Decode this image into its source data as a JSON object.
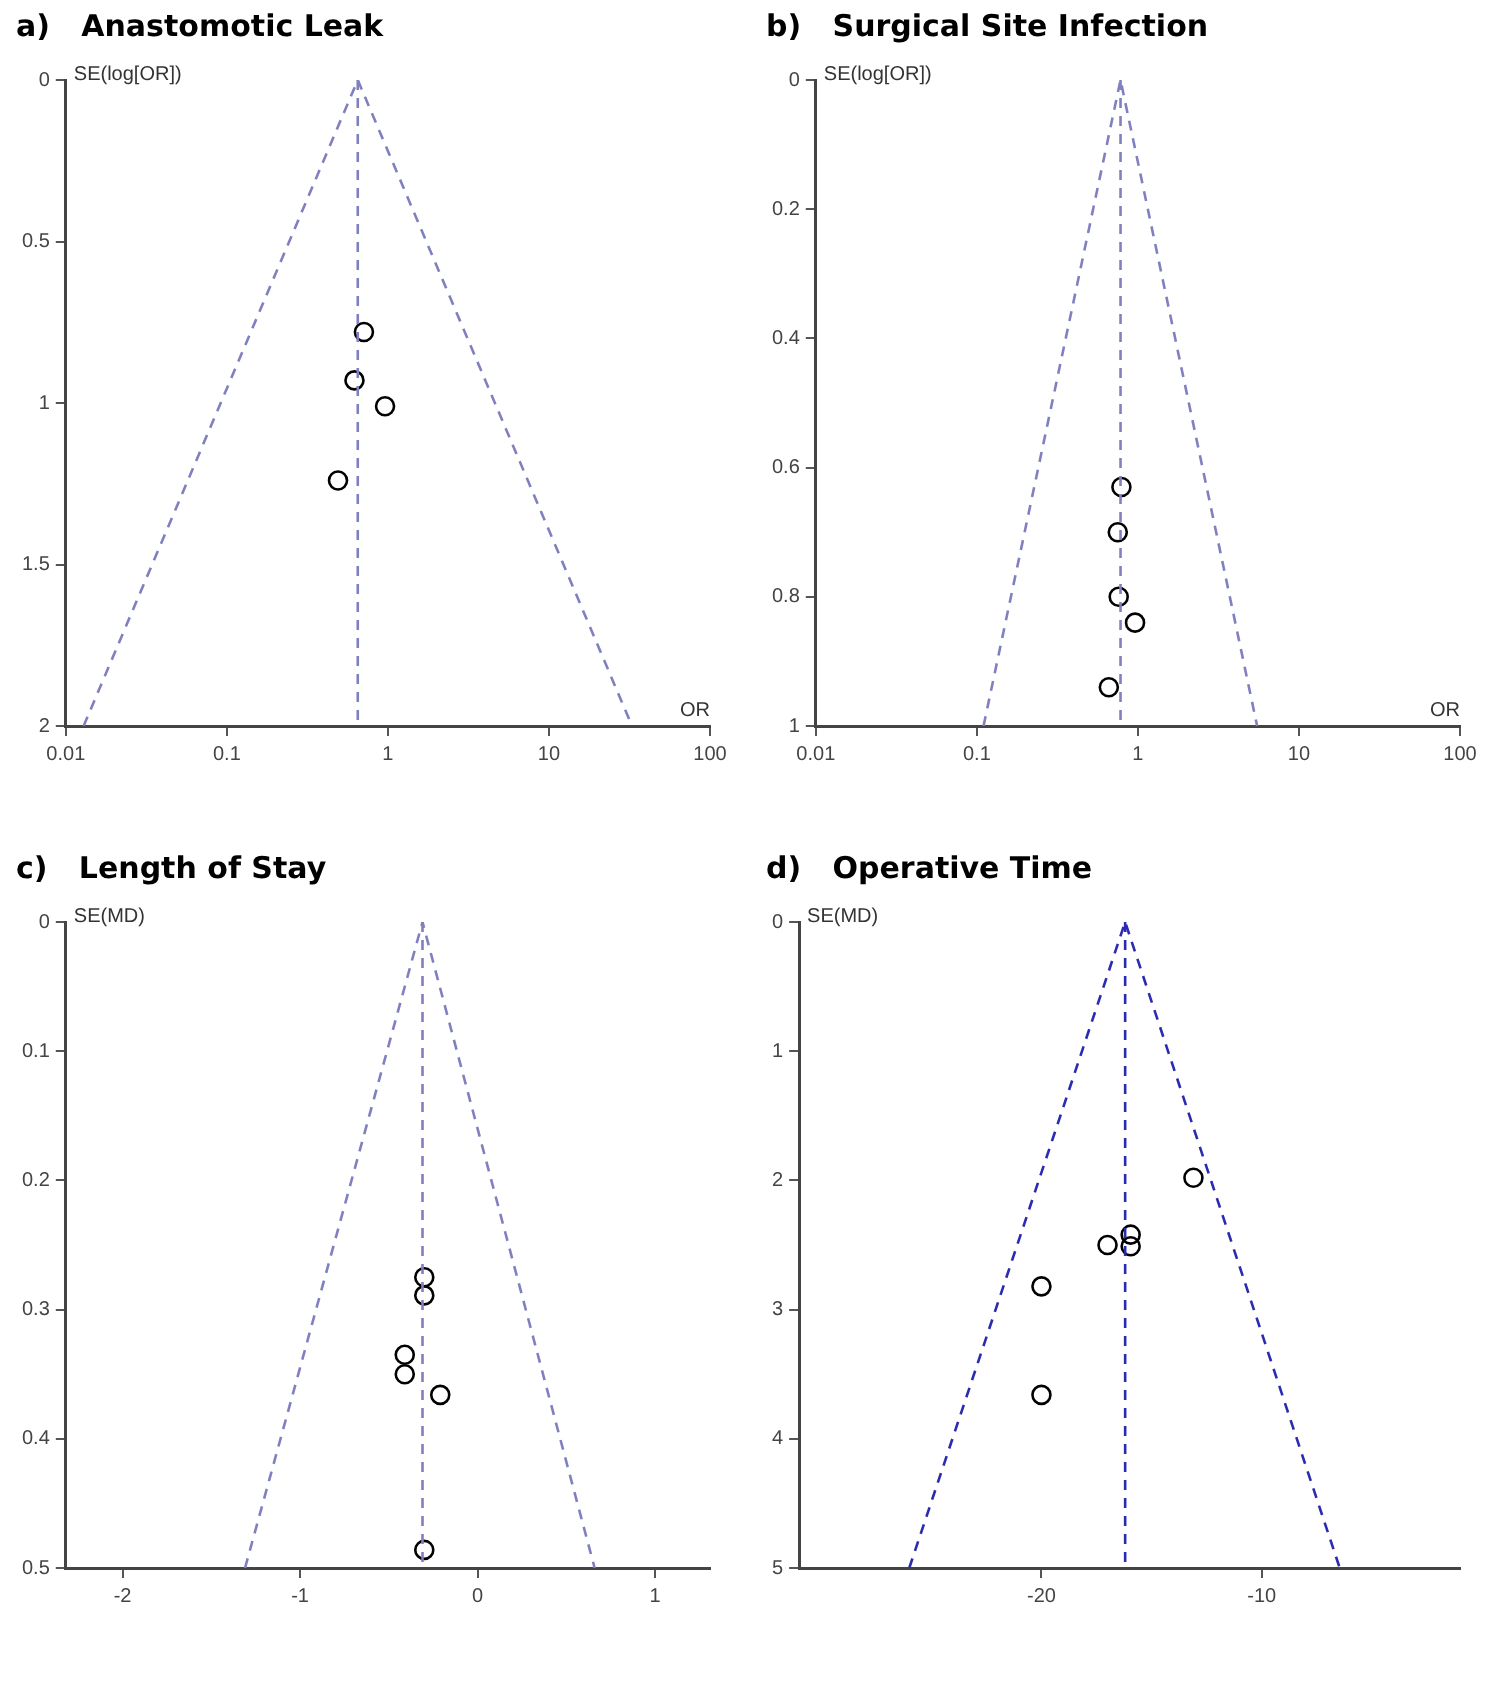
{
  "chart_data": [
    {
      "type": "scatter",
      "title": "a)   Anastomotic Leak",
      "xlabel": "OR",
      "ylabel": "SE(log[OR])",
      "log": "x",
      "xlim": [
        0.01,
        100
      ],
      "xticks": [
        0.01,
        0.1,
        1,
        10,
        100
      ],
      "ylim": [
        2,
        0
      ],
      "yticks": [
        0,
        0.5,
        1,
        1.5,
        2
      ],
      "grid": false,
      "legend": false,
      "series": [
        {
          "type": "scatter",
          "marker": "circle",
          "color": "#000000",
          "x": [
            0.71,
            0.62,
            0.96,
            0.49
          ],
          "values": [
            0.78,
            0.93,
            1.01,
            1.24
          ]
        },
        {
          "type": "line",
          "line_style": "dashed",
          "color": "#8080c0",
          "x": [
            0.0129,
            0.65,
            32.8
          ],
          "values": [
            2,
            0,
            2
          ]
        }
      ],
      "ref_lines": [
        {
          "axis": "x",
          "value": 0.65,
          "color": "#8080c0",
          "line_style": "dashed"
        }
      ]
    },
    {
      "type": "scatter",
      "title": "b)   Surgical Site Infection",
      "xlabel": "OR",
      "ylabel": "SE(log[OR])",
      "log": "x",
      "xlim": [
        0.01,
        100
      ],
      "xticks": [
        0.01,
        0.1,
        1,
        10,
        100
      ],
      "ylim": [
        1,
        0
      ],
      "yticks": [
        0,
        0.2,
        0.4,
        0.6,
        0.8,
        1
      ],
      "grid": false,
      "legend": false,
      "series": [
        {
          "type": "scatter",
          "marker": "circle",
          "color": "#000000",
          "x": [
            0.79,
            0.75,
            0.76,
            0.96,
            0.66
          ],
          "values": [
            0.63,
            0.7,
            0.8,
            0.84,
            0.94
          ]
        },
        {
          "type": "line",
          "line_style": "dashed",
          "color": "#8080c0",
          "x": [
            0.11,
            0.78,
            5.5
          ],
          "values": [
            1,
            0,
            1
          ]
        }
      ],
      "ref_lines": [
        {
          "axis": "x",
          "value": 0.78,
          "color": "#8080c0",
          "line_style": "dashed"
        }
      ]
    },
    {
      "type": "scatter",
      "title": "c)   Length of Stay",
      "ylabel": "SE(MD)",
      "xlim": [
        -2.32,
        1.31
      ],
      "xticks": [
        -2,
        -1,
        0,
        1
      ],
      "ylim": [
        0.5,
        0
      ],
      "yticks": [
        0,
        0.1,
        0.2,
        0.3,
        0.4,
        0.5
      ],
      "grid": false,
      "legend": false,
      "series": [
        {
          "type": "scatter",
          "marker": "circle",
          "color": "#000000",
          "x": [
            -0.3,
            -0.3,
            -0.41,
            -0.41,
            -0.21,
            -0.3
          ],
          "values": [
            0.275,
            0.289,
            0.335,
            0.35,
            0.366,
            0.486
          ]
        },
        {
          "type": "line",
          "line_style": "dashed",
          "color": "#8080c0",
          "x": [
            -1.31,
            -0.31,
            0.66
          ],
          "values": [
            0.5,
            0,
            0.5
          ]
        }
      ],
      "ref_lines": [
        {
          "axis": "x",
          "value": -0.31,
          "color": "#8080c0",
          "line_style": "dashed"
        }
      ]
    },
    {
      "type": "scatter",
      "title": "d)   Operative Time",
      "ylabel": "SE(MD)",
      "xlim": [
        -31,
        -1
      ],
      "xticks": [
        -20,
        -10
      ],
      "ylim": [
        5,
        0
      ],
      "yticks": [
        0,
        1,
        2,
        3,
        4,
        5
      ],
      "grid": false,
      "legend": false,
      "series": [
        {
          "type": "scatter",
          "marker": "circle",
          "color": "#000000",
          "x": [
            -13.1,
            -15.95,
            -15.95,
            -17,
            -20,
            -20
          ],
          "values": [
            1.98,
            2.42,
            2.51,
            2.5,
            2.82,
            3.66
          ]
        },
        {
          "type": "line",
          "line_style": "dashed",
          "color": "#2b2bb0",
          "x": [
            -26,
            -16.2,
            -6.46
          ],
          "values": [
            5,
            0,
            5
          ]
        }
      ],
      "ref_lines": [
        {
          "axis": "x",
          "value": -16.2,
          "color": "#2b2bb0",
          "line_style": "dashed"
        }
      ]
    }
  ]
}
